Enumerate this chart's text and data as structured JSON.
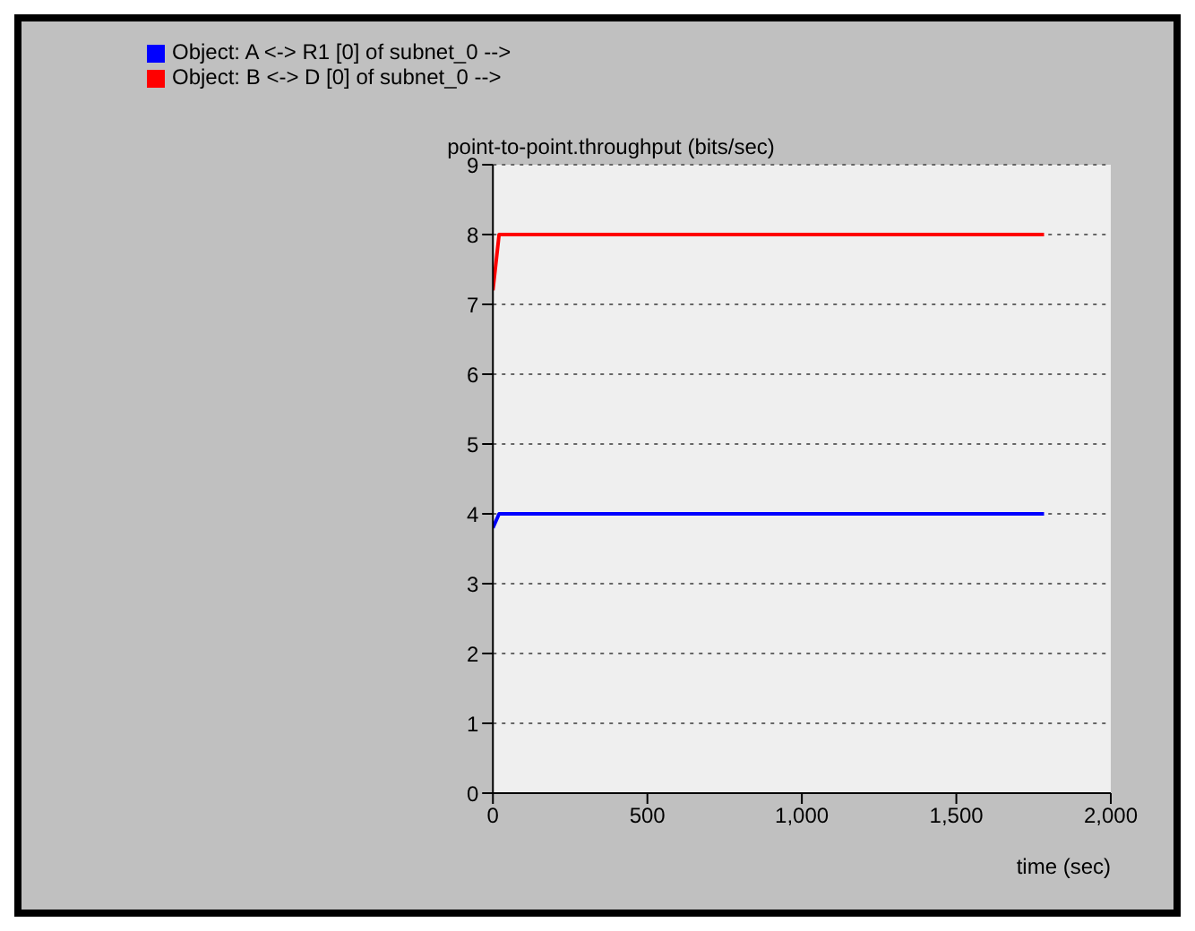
{
  "chart_data": {
    "type": "line",
    "title": "point-to-point.throughput (bits/sec)",
    "xlabel": "time (sec)",
    "series": [
      {
        "name": "Object: A <-> R1 [0] of subnet_0 -->",
        "color": "#0000ff",
        "x": [
          0,
          20,
          1784
        ],
        "values": [
          3.8,
          4,
          4
        ]
      },
      {
        "name": "Object: B <-> D [0] of subnet_0 -->",
        "color": "#ff0000",
        "x": [
          0,
          20,
          1784
        ],
        "values": [
          7.2,
          8,
          8
        ]
      }
    ],
    "xlim": [
      0,
      2000
    ],
    "xticks": [
      0,
      500,
      {
        "value": 1000,
        "label": "1,000"
      },
      {
        "value": 1500,
        "label": "1,500"
      },
      {
        "value": 2000,
        "label": "2,000"
      }
    ],
    "ylim": [
      0,
      9
    ],
    "yticks": [
      0,
      1,
      2,
      3,
      4,
      5,
      6,
      7,
      8,
      9
    ],
    "grid": "y",
    "legend": "top left",
    "marker": "none",
    "line_style": "solid"
  }
}
